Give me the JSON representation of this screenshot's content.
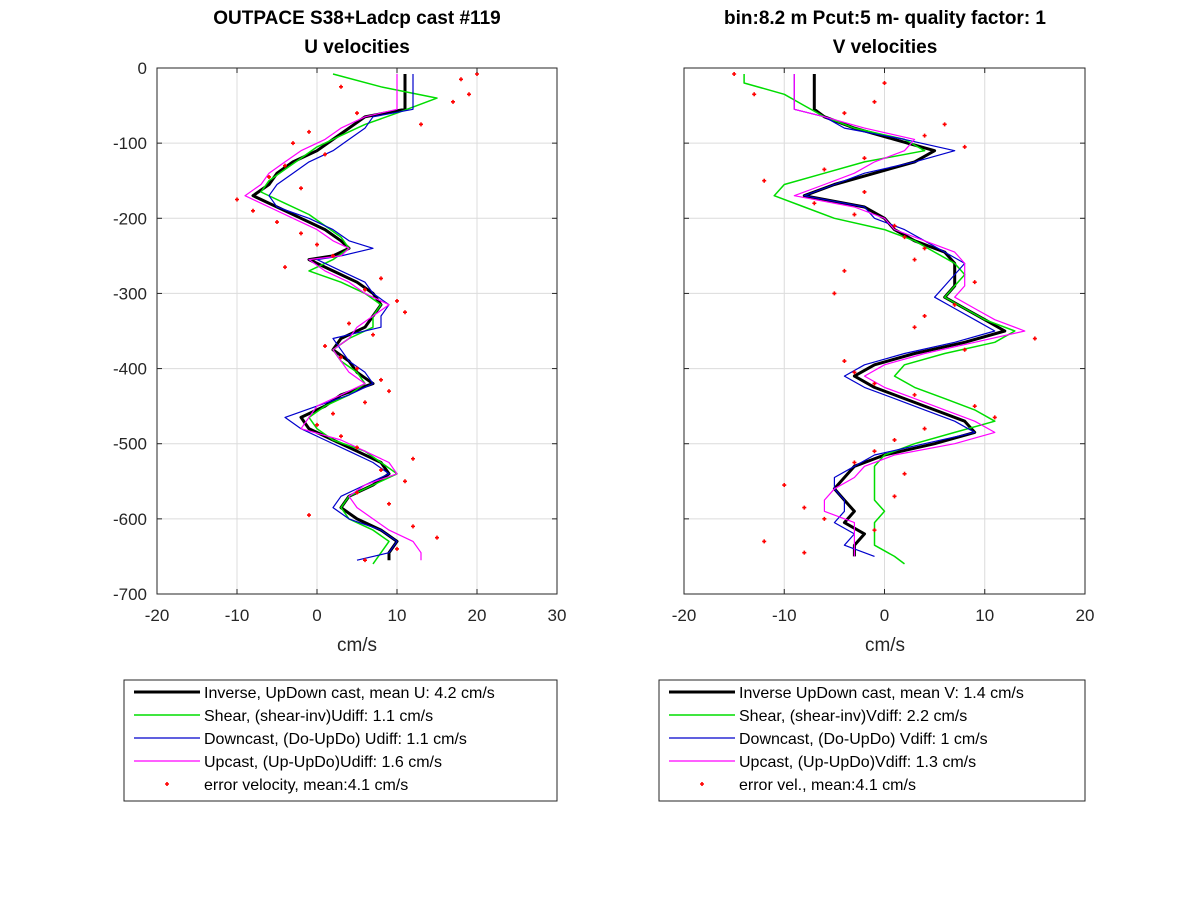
{
  "chart_data": [
    {
      "type": "line",
      "title": [
        "OUTPACE S38+Ladcp cast #119",
        "U velocities"
      ],
      "xlabel": "cm/s",
      "ylabel": "",
      "xlim": [
        -20,
        30
      ],
      "ylim": [
        -700,
        0
      ],
      "xticks": [
        "-20",
        "-10",
        "0",
        "10",
        "20",
        "30"
      ],
      "yticks": [
        "0",
        "-100",
        "-200",
        "-300",
        "-400",
        "-500",
        "-600",
        "-700"
      ],
      "grid": true,
      "legend_placement": "below",
      "series": [
        {
          "name": "Inverse, UpDown cast, mean U:  4.2 cm/s",
          "color": "#000000",
          "width": 3,
          "depth": [
            -8,
            -55,
            -65,
            -80,
            -95,
            -110,
            -125,
            -140,
            -155,
            -170,
            -185,
            -200,
            -215,
            -230,
            -240,
            -250,
            -255,
            -270,
            -285,
            -300,
            -315,
            -330,
            -345,
            -360,
            -375,
            -390,
            -405,
            -420,
            -435,
            -450,
            -465,
            -480,
            -495,
            -510,
            -525,
            -540,
            -555,
            -570,
            -585,
            -600,
            -615,
            -630,
            -645,
            -655
          ],
          "values": [
            11,
            11,
            6,
            4,
            2,
            0,
            -3,
            -5,
            -6,
            -8,
            -5,
            -2,
            1,
            3,
            4,
            2,
            -1,
            2,
            5,
            7,
            8,
            7,
            6,
            3,
            2,
            4,
            5,
            7,
            3,
            1,
            -2,
            -1,
            2,
            5,
            8,
            9,
            7,
            4,
            3,
            5,
            8,
            10,
            9,
            9
          ]
        },
        {
          "name": "Shear, (shear-inv)Udiff:  1.1 cm/s",
          "color": "#00dd00",
          "width": 1.5,
          "depth": [
            -8,
            -25,
            -40,
            -60,
            -75,
            -90,
            -105,
            -120,
            -135,
            -150,
            -165,
            -180,
            -195,
            -210,
            -225,
            -240,
            -255,
            -270,
            -285,
            -300,
            -315,
            -330,
            -345,
            -360,
            -375,
            -390,
            -405,
            -420,
            -435,
            -450,
            -465,
            -480,
            -495,
            -510,
            -525,
            -540,
            -555,
            -570,
            -585,
            -600,
            -615,
            -630,
            -645,
            -660
          ],
          "values": [
            2,
            8,
            15,
            10,
            6,
            3,
            0,
            -2,
            -4,
            -6,
            -7,
            -4,
            -1,
            1,
            3,
            4,
            2,
            -1,
            3,
            6,
            8,
            7,
            7,
            4,
            2,
            3,
            5,
            6,
            4,
            1,
            -1,
            0,
            2,
            6,
            8,
            10,
            7,
            4,
            3,
            4,
            7,
            9,
            8,
            7
          ]
        },
        {
          "name": "Downcast, (Do-UpDo) Udiff:  1.1 cm/s",
          "color": "#0000cc",
          "width": 1.2,
          "depth": [
            -8,
            -55,
            -65,
            -80,
            -95,
            -110,
            -125,
            -140,
            -155,
            -170,
            -185,
            -200,
            -215,
            -230,
            -240,
            -250,
            -255,
            -270,
            -285,
            -300,
            -315,
            -330,
            -345,
            -360,
            -375,
            -390,
            -405,
            -420,
            -435,
            -450,
            -465,
            -480,
            -495,
            -510,
            -525,
            -540,
            -555,
            -570,
            -585,
            -600,
            -615,
            -630,
            -645,
            -655
          ],
          "values": [
            12,
            12,
            7,
            6,
            4,
            2,
            -1,
            -3,
            -5,
            -6,
            -5,
            -1,
            2,
            4,
            7,
            3,
            0,
            3,
            6,
            7,
            9,
            8,
            8,
            2,
            3,
            4,
            6,
            7,
            4,
            0,
            -4,
            -2,
            1,
            4,
            7,
            9,
            6,
            3,
            2,
            4,
            8,
            10,
            9,
            5
          ]
        },
        {
          "name": "Upcast, (Up-UpDo)Udiff:  1.6 cm/s",
          "color": "#ff00ff",
          "width": 1.2,
          "depth": [
            -8,
            -55,
            -65,
            -80,
            -95,
            -110,
            -125,
            -140,
            -155,
            -170,
            -185,
            -200,
            -215,
            -230,
            -240,
            -250,
            -255,
            -270,
            -285,
            -300,
            -315,
            -330,
            -345,
            -360,
            -375,
            -390,
            -405,
            -420,
            -435,
            -450,
            -465,
            -480,
            -495,
            -510,
            -525,
            -540,
            -555,
            -570,
            -585,
            -600,
            -615,
            -630,
            -645,
            -655
          ],
          "values": [
            10,
            10,
            6,
            3,
            1,
            -2,
            -4,
            -6,
            -7,
            -9,
            -6,
            -3,
            0,
            2,
            4,
            3,
            -1,
            1,
            4,
            6,
            9,
            7,
            5,
            4,
            2,
            3,
            4,
            6,
            3,
            0,
            -1,
            -2,
            3,
            6,
            9,
            10,
            6,
            4,
            5,
            7,
            9,
            12,
            13,
            13
          ]
        },
        {
          "name": "error velocity, mean:4.1 cm/s",
          "color": "#ff0000",
          "style": "points",
          "depth": [
            -8,
            -15,
            -25,
            -35,
            -45,
            -60,
            -75,
            -85,
            -100,
            -115,
            -130,
            -145,
            -160,
            -175,
            -190,
            -205,
            -220,
            -235,
            -250,
            -265,
            -280,
            -295,
            -310,
            -325,
            -340,
            -355,
            -370,
            -385,
            -400,
            -415,
            -430,
            -445,
            -460,
            -475,
            -490,
            -505,
            -520,
            -535,
            -550,
            -565,
            -580,
            -595,
            -610,
            -625,
            -640,
            -655
          ],
          "values": [
            20,
            18,
            3,
            19,
            17,
            5,
            13,
            -1,
            -3,
            1,
            -4,
            -6,
            -2,
            -10,
            -8,
            -5,
            -2,
            0,
            2,
            -4,
            8,
            6,
            10,
            11,
            4,
            7,
            1,
            3,
            5,
            8,
            9,
            6,
            2,
            0,
            3,
            5,
            12,
            8,
            11,
            5,
            9,
            -1,
            12,
            15,
            10,
            6
          ]
        }
      ]
    },
    {
      "type": "line",
      "title": [
        "bin:8.2 m  Pcut:5 m- quality factor:  1",
        "V velocities"
      ],
      "xlabel": "cm/s",
      "ylabel": "",
      "xlim": [
        -20,
        20
      ],
      "ylim": [
        -700,
        0
      ],
      "xticks": [
        "-20",
        "-10",
        "0",
        "10",
        "20"
      ],
      "yticks": [],
      "grid": true,
      "legend_placement": "below",
      "series": [
        {
          "name": "Inverse UpDown cast, mean V:  1.4 cm/s",
          "color": "#000000",
          "width": 3,
          "depth": [
            -8,
            -55,
            -65,
            -80,
            -95,
            -110,
            -125,
            -140,
            -155,
            -170,
            -185,
            -200,
            -215,
            -230,
            -245,
            -260,
            -275,
            -290,
            -305,
            -320,
            -335,
            -350,
            -365,
            -380,
            -395,
            -410,
            -425,
            -440,
            -455,
            -470,
            -485,
            -500,
            -515,
            -530,
            -545,
            -560,
            -575,
            -590,
            -605,
            -620,
            -635,
            -650
          ],
          "values": [
            -7,
            -7,
            -6,
            -3,
            1,
            5,
            3,
            -1,
            -5,
            -8,
            -2,
            0,
            1,
            3,
            6,
            7,
            7,
            7,
            6,
            8,
            10,
            12,
            8,
            3,
            -1,
            -3,
            -1,
            2,
            5,
            8,
            9,
            5,
            0,
            -3,
            -4,
            -5,
            -4,
            -3,
            -4,
            -2,
            -3,
            -3
          ]
        },
        {
          "name": "Shear, (shear-inv)Vdiff:  2.2 cm/s",
          "color": "#00dd00",
          "width": 1.5,
          "depth": [
            -8,
            -20,
            -35,
            -50,
            -65,
            -80,
            -95,
            -110,
            -125,
            -140,
            -155,
            -170,
            -185,
            -200,
            -215,
            -230,
            -245,
            -260,
            -275,
            -290,
            -305,
            -320,
            -335,
            -350,
            -365,
            -380,
            -395,
            -410,
            -425,
            -440,
            -455,
            -470,
            -485,
            -500,
            -515,
            -530,
            -545,
            -560,
            -575,
            -590,
            -605,
            -620,
            -635,
            -650,
            -660
          ],
          "values": [
            -14,
            -14,
            -10,
            -8,
            -6,
            -3,
            2,
            4,
            -2,
            -6,
            -10,
            -11,
            -8,
            -5,
            0,
            3,
            5,
            7,
            8,
            7,
            6,
            8,
            10,
            13,
            11,
            6,
            2,
            1,
            3,
            6,
            9,
            11,
            7,
            3,
            0,
            -1,
            -1,
            -1,
            -1,
            0,
            -1,
            -1,
            -1,
            1,
            2
          ]
        },
        {
          "name": "Downcast, (Do-UpDo) Vdiff:  1 cm/s",
          "color": "#0000cc",
          "width": 1.2,
          "depth": [
            -8,
            -55,
            -65,
            -80,
            -95,
            -110,
            -125,
            -140,
            -155,
            -170,
            -185,
            -200,
            -215,
            -230,
            -245,
            -260,
            -275,
            -290,
            -305,
            -320,
            -335,
            -350,
            -365,
            -380,
            -395,
            -410,
            -425,
            -440,
            -455,
            -470,
            -485,
            -500,
            -515,
            -530,
            -545,
            -560,
            -575,
            -590,
            -605,
            -620,
            -635,
            -650
          ],
          "values": [
            -9,
            -9,
            -6,
            -4,
            2,
            7,
            3,
            -2,
            -5,
            -8,
            -2,
            -1,
            2,
            4,
            6,
            8,
            7,
            6,
            5,
            7,
            9,
            11,
            7,
            2,
            -2,
            -4,
            -2,
            1,
            4,
            7,
            9,
            4,
            -1,
            -3,
            -5,
            -5,
            -4,
            -4,
            -5,
            -3,
            -4,
            -1
          ]
        },
        {
          "name": "Upcast, (Up-UpDo)Vdiff:  1.3 cm/s",
          "color": "#ff00ff",
          "width": 1.2,
          "depth": [
            -8,
            -55,
            -65,
            -80,
            -95,
            -110,
            -125,
            -140,
            -155,
            -170,
            -185,
            -200,
            -215,
            -230,
            -245,
            -260,
            -275,
            -290,
            -305,
            -320,
            -335,
            -350,
            -365,
            -380,
            -395,
            -410,
            -425,
            -440,
            -455,
            -470,
            -485,
            -500,
            -515,
            -530,
            -545,
            -560,
            -575,
            -590,
            -605,
            -620,
            -635,
            -650
          ],
          "values": [
            -9,
            -9,
            -6,
            -2,
            3,
            2,
            -1,
            -3,
            -6,
            -9,
            -3,
            0,
            1,
            4,
            7,
            8,
            8,
            8,
            7,
            9,
            11,
            14,
            9,
            4,
            0,
            -2,
            0,
            3,
            6,
            9,
            11,
            7,
            1,
            -2,
            -3,
            -5,
            -6,
            -6,
            -3,
            -3,
            -3,
            -3
          ]
        },
        {
          "name": "error vel., mean:4.1 cm/s",
          "color": "#ff0000",
          "style": "points",
          "depth": [
            -8,
            -20,
            -35,
            -45,
            -60,
            -75,
            -90,
            -105,
            -120,
            -135,
            -150,
            -165,
            -180,
            -195,
            -210,
            -225,
            -240,
            -255,
            -270,
            -285,
            -300,
            -315,
            -330,
            -345,
            -360,
            -375,
            -390,
            -405,
            -420,
            -435,
            -450,
            -465,
            -480,
            -495,
            -510,
            -525,
            -540,
            -555,
            -570,
            -585,
            -600,
            -615,
            -630,
            -645
          ],
          "values": [
            -15,
            0,
            -13,
            -1,
            -4,
            6,
            4,
            8,
            -2,
            -6,
            -12,
            -2,
            -7,
            -3,
            1,
            2,
            4,
            3,
            -4,
            9,
            -5,
            7,
            4,
            3,
            15,
            8,
            -4,
            -3,
            -1,
            3,
            9,
            11,
            4,
            1,
            -1,
            -3,
            2,
            -10,
            1,
            -8,
            -6,
            -1,
            -12,
            -8
          ]
        }
      ]
    }
  ]
}
